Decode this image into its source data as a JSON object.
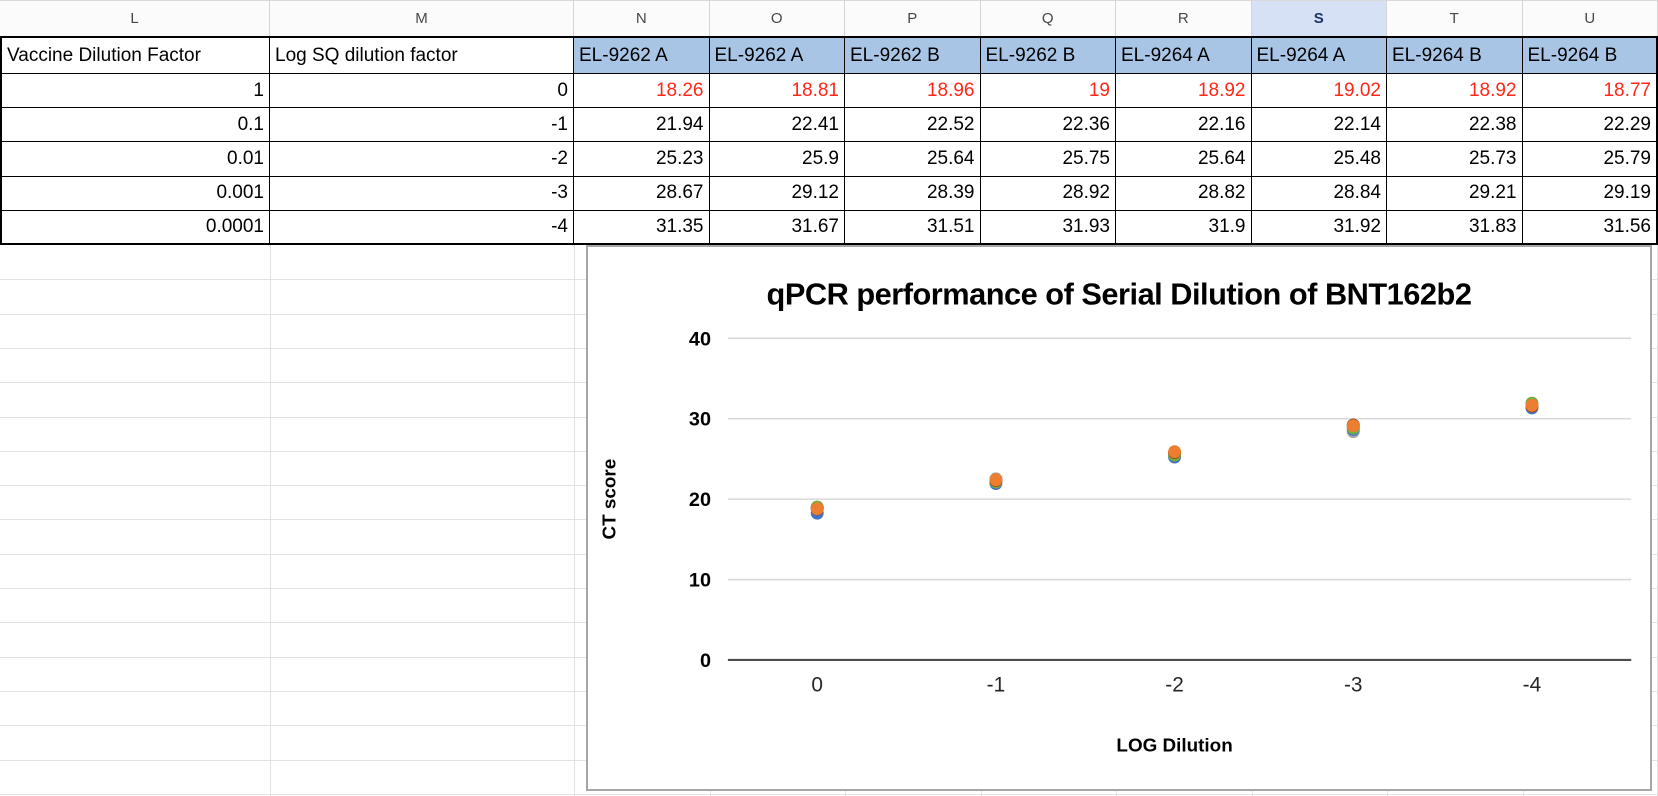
{
  "sheet": {
    "column_letters": [
      "L",
      "M",
      "N",
      "O",
      "P",
      "Q",
      "R",
      "S",
      "T",
      "U"
    ],
    "selected_column": "S",
    "table": {
      "headers": [
        "Vaccine Dilution Factor",
        "Log SQ dilution factor",
        "EL-9262 A",
        "EL-9262 A",
        "EL-9262 B",
        "EL-9262 B",
        "EL-9264 A",
        "EL-9264 A",
        "EL-9264 B",
        "EL-9264 B"
      ],
      "rows": [
        [
          "1",
          "0",
          "18.26",
          "18.81",
          "18.96",
          "19",
          "18.92",
          "19.02",
          "18.92",
          "18.77"
        ],
        [
          "0.1",
          "-1",
          "21.94",
          "22.41",
          "22.52",
          "22.36",
          "22.16",
          "22.14",
          "22.38",
          "22.29"
        ],
        [
          "0.01",
          "-2",
          "25.23",
          "25.9",
          "25.64",
          "25.75",
          "25.64",
          "25.48",
          "25.73",
          "25.79"
        ],
        [
          "0.001",
          "-3",
          "28.67",
          "29.12",
          "28.39",
          "28.92",
          "28.82",
          "28.84",
          "29.21",
          "29.19"
        ],
        [
          "0.0001",
          "-4",
          "31.35",
          "31.67",
          "31.51",
          "31.93",
          "31.9",
          "31.92",
          "31.83",
          "31.56"
        ]
      ],
      "red_row_index": 0
    },
    "colors": {
      "header_fill": "#a9c5e6",
      "red_text": "#ff2718",
      "selected_header_fill": "#d7e1f6",
      "selected_header_text": "#1d3566"
    }
  },
  "chart_data": {
    "type": "scatter",
    "title": "qPCR performance of Serial Dilution of BNT162b2",
    "xlabel": "LOG Dilution",
    "ylabel": "CT score",
    "x": [
      0,
      -1,
      -2,
      -3,
      -4
    ],
    "xticklabels": [
      "0",
      "-1",
      "-2",
      "-3",
      "-4"
    ],
    "yticks": [
      0,
      10,
      20,
      30,
      40
    ],
    "ylim": [
      0,
      40
    ],
    "grid": true,
    "legend": false,
    "series": [
      {
        "name": "EL-9262 A",
        "color": "#4472C4",
        "values": [
          18.26,
          21.94,
          25.23,
          28.67,
          31.35
        ]
      },
      {
        "name": "EL-9262 A",
        "color": "#ED7D31",
        "values": [
          18.81,
          22.41,
          25.9,
          29.12,
          31.67
        ]
      },
      {
        "name": "EL-9262 B",
        "color": "#A5A5A5",
        "values": [
          18.96,
          22.52,
          25.64,
          28.39,
          31.51
        ]
      },
      {
        "name": "EL-9262 B",
        "color": "#FFC000",
        "values": [
          19,
          22.36,
          25.75,
          28.92,
          31.93
        ]
      },
      {
        "name": "EL-9264 A",
        "color": "#5B9BD5",
        "values": [
          18.92,
          22.16,
          25.64,
          28.82,
          31.9
        ]
      },
      {
        "name": "EL-9264 A",
        "color": "#70AD47",
        "values": [
          19.02,
          22.14,
          25.48,
          28.84,
          31.92
        ]
      },
      {
        "name": "EL-9264 B",
        "color": "#264478",
        "values": [
          18.92,
          22.38,
          25.73,
          29.21,
          31.83
        ]
      },
      {
        "name": "EL-9264 B",
        "color": "#9E480E",
        "values": [
          18.77,
          22.29,
          25.79,
          29.19,
          31.56
        ]
      }
    ]
  }
}
